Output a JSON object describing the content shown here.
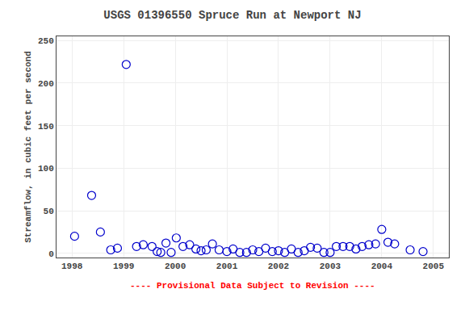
{
  "chart_data": {
    "type": "scatter",
    "title": "USGS 01396550 Spruce Run at Newport NJ",
    "ylabel": "Streamflow, in cubic feet per second",
    "annotations": [
      {
        "text": "---- Provisional Data Subject to Revision ----",
        "color": "#ff0000"
      }
    ],
    "x": [
      1998.05,
      1998.38,
      1998.55,
      1998.75,
      1998.88,
      1999.05,
      1999.25,
      1999.38,
      1999.55,
      1999.65,
      1999.72,
      1999.82,
      1999.92,
      2000.02,
      2000.15,
      2000.28,
      2000.4,
      2000.5,
      2000.6,
      2000.72,
      2000.85,
      2001.0,
      2001.12,
      2001.25,
      2001.38,
      2001.5,
      2001.62,
      2001.75,
      2001.88,
      2002.0,
      2002.12,
      2002.25,
      2002.38,
      2002.5,
      2002.62,
      2002.75,
      2002.88,
      2003.0,
      2003.12,
      2003.25,
      2003.38,
      2003.5,
      2003.62,
      2003.75,
      2003.88,
      2004.0,
      2004.12,
      2004.25,
      2004.55,
      2004.8
    ],
    "values": [
      20,
      68,
      25,
      4,
      6,
      222,
      8,
      10,
      8,
      2,
      1,
      12,
      1,
      18,
      8,
      10,
      5,
      3,
      4,
      11,
      4,
      2,
      5,
      1,
      1,
      4,
      2,
      6,
      2,
      3,
      1,
      5,
      1,
      3,
      7,
      6,
      1,
      1,
      8,
      8,
      8,
      5,
      8,
      10,
      11,
      28,
      13,
      11,
      4,
      2
    ],
    "color": "#0000cc",
    "marker": "circle-open",
    "xlim": [
      1997.7,
      2005.3
    ],
    "ylim": [
      -5,
      255
    ],
    "xticks": [
      1998,
      1999,
      2000,
      2001,
      2002,
      2003,
      2004,
      2005
    ],
    "yticks": [
      0,
      50,
      100,
      150,
      200,
      250
    ],
    "grid": true
  }
}
